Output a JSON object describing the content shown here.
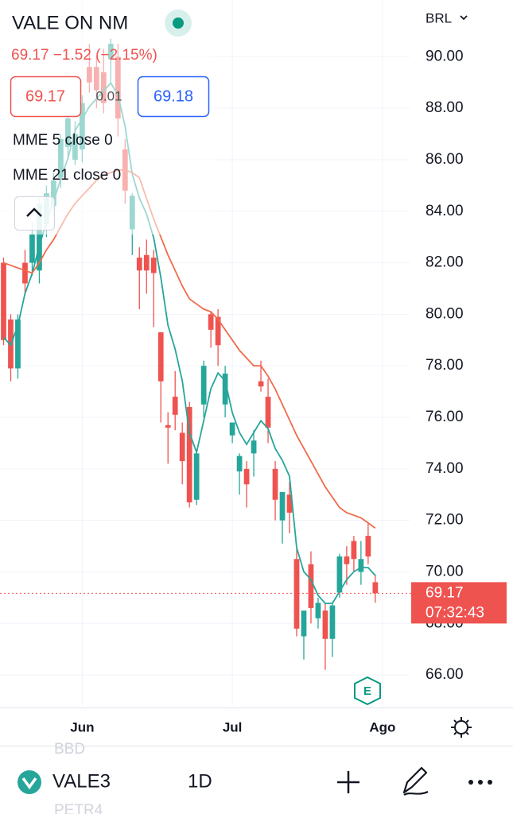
{
  "header": {
    "symbol_name": "VALE ON NM",
    "change_text": "69.17 −1.52 (−2.15%)",
    "bid": "69.17",
    "spread": "0.01",
    "ask": "69.18",
    "currency": "BRL",
    "event_badge": "E"
  },
  "toolbar": {
    "ghost_above": "BBD",
    "symbol": "VALE3",
    "interval": "1D",
    "ghost_below": "PETR4"
  },
  "chart_data": {
    "type": "candlestick",
    "up_color": "#26a69a",
    "down_color": "#ef5350",
    "xlim": [
      -0.5,
      56.8
    ],
    "xticks": [
      {
        "value": 11,
        "label": "Jun"
      },
      {
        "value": 32,
        "label": "Jul"
      },
      {
        "value": 53,
        "label": "Ago"
      }
    ],
    "ylim": [
      64.8,
      92.2
    ],
    "yticks": [
      {
        "value": 66,
        "label": "66.00"
      },
      {
        "value": 68,
        "label": "68.00"
      },
      {
        "value": 70,
        "label": "70.00"
      },
      {
        "value": 72,
        "label": "72.00"
      },
      {
        "value": 74,
        "label": "74.00"
      },
      {
        "value": 76,
        "label": "76.00"
      },
      {
        "value": 78,
        "label": "78.00"
      },
      {
        "value": 80,
        "label": "80.00"
      },
      {
        "value": 82,
        "label": "82.00"
      },
      {
        "value": 84,
        "label": "84.00"
      },
      {
        "value": 86,
        "label": "86.00"
      },
      {
        "value": 88,
        "label": "88.00"
      },
      {
        "value": 90,
        "label": "90.00"
      }
    ],
    "grid": true,
    "open": [
      82.0,
      79.8,
      77.9,
      82.0,
      82.0,
      81.7,
      83.5,
      84.2,
      85.3,
      86.5,
      86.0,
      86.4,
      89.6,
      89.6,
      89.4,
      89.9,
      90.0,
      86.4,
      83.3,
      82.2,
      82.3,
      82.2,
      79.3,
      75.7,
      76.8,
      75.4,
      76.4,
      72.8,
      76.5,
      80.0,
      79.9,
      76.5,
      75.3,
      73.9,
      74.0,
      74.6,
      77.4,
      76.8,
      74.0,
      72.0,
      73.0,
      70.5,
      67.5,
      70.3,
      68.2,
      68.5,
      67.4,
      69.2,
      70.6,
      71.2,
      70.0,
      71.4,
      69.6
    ],
    "high": [
      82.2,
      80.0,
      80.0,
      82.5,
      83.6,
      84.5,
      85.0,
      85.5,
      87.0,
      88.0,
      87.5,
      88.5,
      90.5,
      90.0,
      90.3,
      90.7,
      90.5,
      86.8,
      84.7,
      82.6,
      82.9,
      82.5,
      79.3,
      76.2,
      77.8,
      75.8,
      76.6,
      74.7,
      78.2,
      80.1,
      80.2,
      78.0,
      75.8,
      74.6,
      74.3,
      75.5,
      78.2,
      77.5,
      74.3,
      73.0,
      73.5,
      70.9,
      68.5,
      70.8,
      69.0,
      68.8,
      68.8,
      70.7,
      71.0,
      71.4,
      71.2,
      71.9,
      69.9
    ],
    "low": [
      78.8,
      77.4,
      77.5,
      80.8,
      81.5,
      81.2,
      83.0,
      83.8,
      84.9,
      86.0,
      85.8,
      85.9,
      88.6,
      88.0,
      87.8,
      89.0,
      86.9,
      84.3,
      82.3,
      80.2,
      80.8,
      79.5,
      75.8,
      74.2,
      75.5,
      73.4,
      72.5,
      72.6,
      76.0,
      78.7,
      78.0,
      76.0,
      75.0,
      73.0,
      72.5,
      73.7,
      77.0,
      75.0,
      72.0,
      71.1,
      71.5,
      67.5,
      66.6,
      68.0,
      67.8,
      66.2,
      66.7,
      69.0,
      69.5,
      70.0,
      69.5,
      70.3,
      68.8
    ],
    "close": [
      79.0,
      77.9,
      79.8,
      81.2,
      83.1,
      84.3,
      84.7,
      85.2,
      86.8,
      87.6,
      87.0,
      88.2,
      89.0,
      88.7,
      88.2,
      90.5,
      87.6,
      84.8,
      84.6,
      81.7,
      81.7,
      81.6,
      77.4,
      75.6,
      76.1,
      74.3,
      72.7,
      74.6,
      78.0,
      79.4,
      78.8,
      77.7,
      75.8,
      74.5,
      73.4,
      75.1,
      77.2,
      75.6,
      72.8,
      73.1,
      72.3,
      67.8,
      68.5,
      68.6,
      68.8,
      67.4,
      68.7,
      70.6,
      70.3,
      70.5,
      70.5,
      70.6,
      69.17
    ],
    "series": [
      {
        "name": "MME 5 close 0",
        "color": "#26a69a",
        "values": [
          79.11,
          78.8,
          79.57,
          80.81,
          81.58,
          82.66,
          83.58,
          84.36,
          85.28,
          86.05,
          87.13,
          87.59,
          88.06,
          88.37,
          88.67,
          88.98,
          88.52,
          87.29,
          85.44,
          84.51,
          83.89,
          82.97,
          81.43,
          79.57,
          78.65,
          77.42,
          75.41,
          74.64,
          75.87,
          77.11,
          77.72,
          77.42,
          76.18,
          75.41,
          74.95,
          75.41,
          75.87,
          75.56,
          74.79,
          74.33,
          73.71,
          70.94,
          70.01,
          69.7,
          69.09,
          68.78,
          68.78,
          69.24,
          69.7,
          70.01,
          70.17,
          70.17,
          69.86
        ]
      },
      {
        "name": "MME 21 close 0",
        "color": "#f06a4a",
        "values": [
          82.0,
          81.9,
          81.8,
          81.7,
          81.6,
          82.0,
          82.5,
          82.9,
          83.4,
          83.9,
          84.3,
          84.6,
          84.9,
          85.2,
          85.4,
          85.5,
          85.6,
          85.6,
          85.5,
          85.3,
          84.5,
          83.7,
          83.0,
          82.3,
          81.7,
          81.1,
          80.6,
          80.4,
          80.2,
          80.1,
          79.8,
          79.4,
          79.0,
          78.6,
          78.3,
          78.0,
          78.0,
          77.6,
          77.1,
          76.5,
          75.9,
          75.3,
          74.8,
          74.3,
          73.8,
          73.3,
          72.9,
          72.5,
          72.3,
          72.2,
          72.1,
          71.9,
          71.7
        ]
      }
    ],
    "last_price": 69.17,
    "countdown": "07:32:43"
  }
}
